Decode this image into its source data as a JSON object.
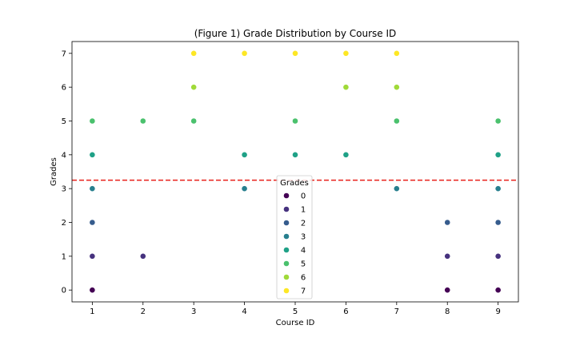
{
  "chart_data": {
    "type": "scatter",
    "title": "(Figure 1) Grade Distribution by Course ID",
    "xlabel": "Course ID",
    "ylabel": "Grades",
    "xlim": [
      0.6,
      9.4
    ],
    "ylim": [
      -0.35,
      7.35
    ],
    "xticks": [
      1,
      2,
      3,
      4,
      5,
      6,
      7,
      8,
      9
    ],
    "yticks": [
      0,
      1,
      2,
      3,
      4,
      5,
      6,
      7
    ],
    "grid": false,
    "reference_line": {
      "y": 3.25,
      "style": "dashed",
      "color": "#e8201a"
    },
    "legend": {
      "title": "Grades",
      "placement": "center-bottom",
      "entries": [
        "0",
        "1",
        "2",
        "3",
        "4",
        "5",
        "6",
        "7"
      ]
    },
    "colormap": {
      "0": "#440154",
      "1": "#46327e",
      "2": "#365c8d",
      "3": "#277f8e",
      "4": "#1fa187",
      "5": "#4ac16d",
      "6": "#a0da39",
      "7": "#fde725"
    },
    "points": [
      {
        "x": 1,
        "y": 0
      },
      {
        "x": 1,
        "y": 1
      },
      {
        "x": 1,
        "y": 2
      },
      {
        "x": 1,
        "y": 3
      },
      {
        "x": 1,
        "y": 4
      },
      {
        "x": 1,
        "y": 5
      },
      {
        "x": 2,
        "y": 1
      },
      {
        "x": 2,
        "y": 5
      },
      {
        "x": 3,
        "y": 5
      },
      {
        "x": 3,
        "y": 6
      },
      {
        "x": 3,
        "y": 7
      },
      {
        "x": 4,
        "y": 3
      },
      {
        "x": 4,
        "y": 4
      },
      {
        "x": 4,
        "y": 7
      },
      {
        "x": 5,
        "y": 4
      },
      {
        "x": 5,
        "y": 5
      },
      {
        "x": 5,
        "y": 7
      },
      {
        "x": 6,
        "y": 4
      },
      {
        "x": 6,
        "y": 6
      },
      {
        "x": 6,
        "y": 7
      },
      {
        "x": 7,
        "y": 3
      },
      {
        "x": 7,
        "y": 5
      },
      {
        "x": 7,
        "y": 6
      },
      {
        "x": 7,
        "y": 7
      },
      {
        "x": 8,
        "y": 0
      },
      {
        "x": 8,
        "y": 1
      },
      {
        "x": 8,
        "y": 2
      },
      {
        "x": 9,
        "y": 0
      },
      {
        "x": 9,
        "y": 1
      },
      {
        "x": 9,
        "y": 2
      },
      {
        "x": 9,
        "y": 3
      },
      {
        "x": 9,
        "y": 4
      },
      {
        "x": 9,
        "y": 5
      }
    ]
  }
}
